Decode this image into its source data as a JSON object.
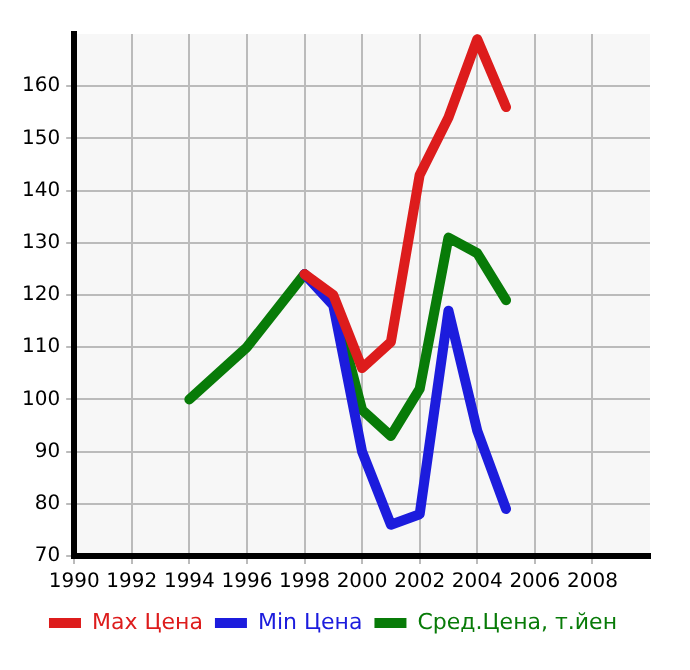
{
  "chart_data": {
    "type": "line",
    "xlim": [
      1990,
      2010
    ],
    "xticks": [
      1990,
      1992,
      1994,
      1996,
      1998,
      2000,
      2002,
      2004,
      2006,
      2008
    ],
    "ylim": [
      70,
      170
    ],
    "yticks": [
      70,
      80,
      90,
      100,
      110,
      120,
      130,
      140,
      150,
      160
    ],
    "grid": true,
    "legend": "bottom",
    "marker": "none",
    "line_style": "solid",
    "series": [
      {
        "name": "Max Цена",
        "color": "#dd1c1c",
        "x": [
          1998,
          1999,
          2000,
          2001,
          2002,
          2003,
          2004,
          2005
        ],
        "values": [
          124,
          120,
          106,
          111,
          143,
          154,
          169,
          156
        ]
      },
      {
        "name": "Min Цена",
        "color": "#1c1cdd",
        "x": [
          1998,
          1999,
          2000,
          2001,
          2002,
          2003,
          2004,
          2005
        ],
        "values": [
          124,
          118,
          90,
          76,
          78,
          117,
          94,
          79
        ]
      },
      {
        "name": "Сред.Цена, т.йен",
        "color": "#087b08",
        "x": [
          1994,
          1996,
          1998,
          1999,
          2000,
          2001,
          2002,
          2003,
          2004,
          2005
        ],
        "values": [
          100,
          110,
          124,
          119,
          98,
          93,
          102,
          131,
          128,
          119
        ]
      }
    ]
  }
}
